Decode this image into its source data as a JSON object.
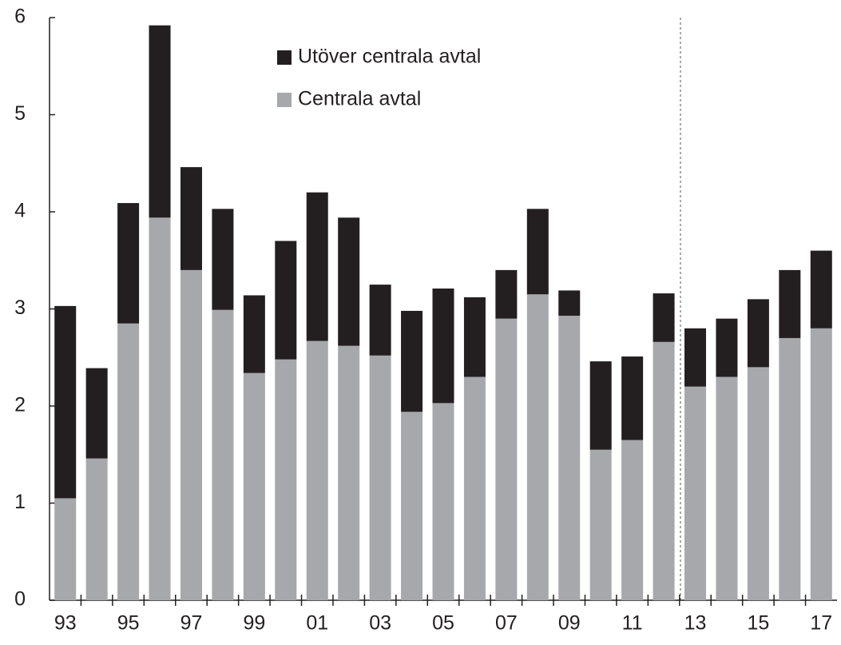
{
  "chart_data": {
    "type": "stacked_bar",
    "categories": [
      "93",
      null,
      "95",
      null,
      "97",
      null,
      "99",
      null,
      "01",
      null,
      "03",
      null,
      "05",
      null,
      "07",
      null,
      "09",
      null,
      "11",
      null,
      "13",
      null,
      "15",
      null,
      "17"
    ],
    "series": [
      {
        "name": "Centrala avtal",
        "color": "#a6a8ab",
        "values": [
          1.05,
          1.46,
          2.85,
          3.94,
          3.4,
          2.99,
          2.34,
          2.48,
          2.67,
          2.62,
          2.52,
          1.94,
          2.03,
          2.3,
          2.9,
          3.15,
          2.93,
          1.55,
          1.65,
          2.66,
          2.2,
          2.3,
          2.4,
          2.7,
          2.8
        ]
      },
      {
        "name": "Utöver centrala avtal",
        "color": "#231f20",
        "values": [
          1.98,
          0.93,
          1.24,
          1.98,
          1.06,
          1.04,
          0.8,
          1.22,
          1.53,
          1.32,
          0.73,
          1.04,
          1.18,
          0.82,
          0.5,
          0.88,
          0.26,
          0.91,
          0.86,
          0.5,
          0.6,
          0.6,
          0.7,
          0.7,
          0.8
        ]
      }
    ],
    "ylim": [
      0,
      6
    ],
    "yticks": [
      0,
      1,
      2,
      3,
      4,
      5,
      6
    ],
    "grid": false
  }
}
